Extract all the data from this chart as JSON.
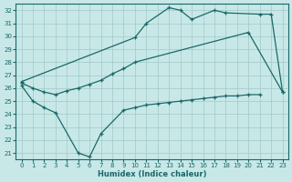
{
  "bg_color": "#c8e8e8",
  "grid_color": "#a0c8c8",
  "line_color": "#1a6868",
  "xlabel": "Humidex (Indice chaleur)",
  "ylabel_ticks": [
    21,
    22,
    23,
    24,
    25,
    26,
    27,
    28,
    29,
    30,
    31,
    32
  ],
  "xticks": [
    0,
    1,
    2,
    3,
    4,
    5,
    6,
    7,
    8,
    9,
    10,
    11,
    12,
    13,
    14,
    15,
    16,
    17,
    18,
    19,
    20,
    21,
    22,
    23
  ],
  "xlim": [
    -0.5,
    23.5
  ],
  "ylim": [
    20.5,
    32.5
  ],
  "upper_x": [
    0,
    10,
    11,
    13,
    14,
    15,
    17,
    18,
    21,
    22,
    23
  ],
  "upper_y": [
    26.5,
    29.9,
    31.0,
    32.2,
    32.0,
    31.3,
    32.0,
    31.8,
    31.7,
    31.7,
    25.7
  ],
  "mid_x": [
    0,
    1,
    2,
    3,
    4,
    5,
    6,
    7,
    8,
    9,
    10,
    20,
    23
  ],
  "mid_y": [
    26.4,
    26.0,
    25.7,
    25.5,
    25.8,
    26.0,
    26.3,
    26.6,
    27.1,
    27.5,
    28.0,
    30.3,
    25.7
  ],
  "low_x": [
    0,
    1,
    2,
    3,
    5,
    6,
    7,
    9,
    10,
    11,
    12,
    13,
    14,
    15,
    16,
    17,
    18,
    19,
    20,
    21
  ],
  "low_y": [
    26.2,
    25.0,
    24.5,
    24.1,
    21.0,
    20.7,
    22.5,
    24.3,
    24.5,
    24.7,
    24.8,
    24.9,
    25.0,
    25.1,
    25.2,
    25.3,
    25.4,
    25.4,
    25.5,
    25.5
  ]
}
